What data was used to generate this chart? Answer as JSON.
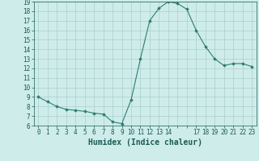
{
  "x": [
    0,
    1,
    2,
    3,
    4,
    5,
    6,
    7,
    8,
    9,
    10,
    11,
    12,
    13,
    14,
    15,
    16,
    17,
    18,
    19,
    20,
    21,
    22,
    23
  ],
  "y": [
    9.0,
    8.5,
    8.0,
    7.7,
    7.6,
    7.5,
    7.3,
    7.2,
    6.4,
    6.2,
    8.7,
    13.0,
    17.0,
    18.3,
    19.0,
    18.8,
    18.2,
    16.0,
    14.3,
    13.0,
    12.3,
    12.5,
    12.5,
    12.2
  ],
  "xlabel": "Humidex (Indice chaleur)",
  "ylim": [
    6,
    19
  ],
  "xlim": [
    -0.5,
    23.5
  ],
  "yticks": [
    6,
    7,
    8,
    9,
    10,
    11,
    12,
    13,
    14,
    15,
    16,
    17,
    18,
    19
  ],
  "ytick_labels": [
    "6",
    "7",
    "8",
    "9",
    "10",
    "11",
    "12",
    "13",
    "14",
    "15",
    "16",
    "17",
    "18",
    "19"
  ],
  "xticks": [
    0,
    1,
    2,
    3,
    4,
    5,
    6,
    7,
    8,
    9,
    10,
    11,
    12,
    13,
    14,
    15,
    16,
    17,
    18,
    19,
    20,
    21,
    22,
    23
  ],
  "xtick_labels": [
    "0",
    "1",
    "2",
    "3",
    "4",
    "5",
    "6",
    "7",
    "8",
    "9",
    "10",
    "11",
    "12",
    "13",
    "14",
    "",
    "",
    "17",
    "18",
    "19",
    "20",
    "21",
    "22",
    "23"
  ],
  "line_color": "#2d7d6f",
  "marker": "D",
  "marker_size": 1.8,
  "bg_color": "#ceecea",
  "grid_color": "#aacfcc",
  "tick_label_fontsize": 5.5,
  "xlabel_fontsize": 7.0,
  "line_width": 0.8
}
